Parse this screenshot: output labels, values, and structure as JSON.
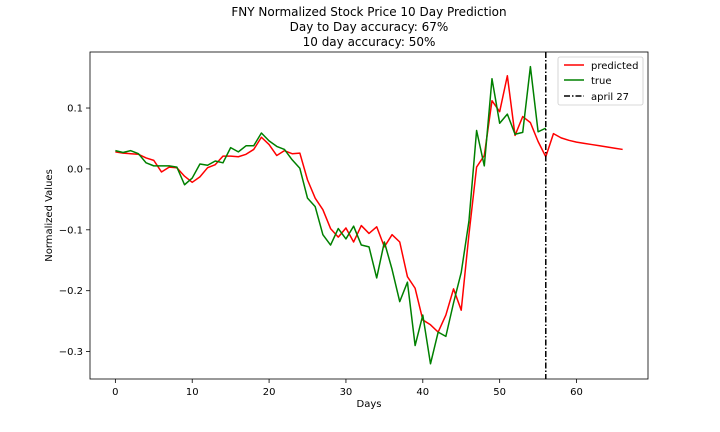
{
  "chart_data": {
    "type": "line",
    "title": [
      "FNY Normalized Stock Price 10 Day Prediction",
      "Day to Day accuracy: 67%",
      "10 day accuracy: 50%"
    ],
    "xlabel": "Days",
    "ylabel": "Normalized Values",
    "xlim": [
      -3.3,
      69.3
    ],
    "ylim": [
      -0.345,
      0.192
    ],
    "xticks": [
      0,
      10,
      20,
      30,
      40,
      50,
      60
    ],
    "yticks": [
      -0.3,
      -0.2,
      -0.1,
      0.0,
      0.1
    ],
    "ytick_labels": [
      "−0.3",
      "−0.2",
      "−0.1",
      "0.0",
      "0.1"
    ],
    "grid": false,
    "legend_position": "top-right",
    "series": [
      {
        "name": "predicted",
        "color": "#ff0000",
        "x": [
          0,
          1,
          2,
          3,
          4,
          5,
          6,
          7,
          8,
          9,
          10,
          11,
          12,
          13,
          14,
          15,
          16,
          17,
          18,
          19,
          20,
          21,
          22,
          23,
          24,
          25,
          26,
          27,
          28,
          29,
          30,
          31,
          32,
          33,
          34,
          35,
          36,
          37,
          38,
          39,
          40,
          41,
          42,
          43,
          44,
          45,
          46,
          47,
          48,
          49,
          50,
          51,
          52,
          53,
          54,
          55,
          56,
          57,
          58,
          59,
          60,
          61,
          62,
          63,
          64,
          65,
          66
        ],
        "y": [
          0.028,
          0.026,
          0.025,
          0.024,
          0.018,
          0.014,
          -0.005,
          0.003,
          0.002,
          -0.012,
          -0.022,
          -0.013,
          0.002,
          0.007,
          0.021,
          0.021,
          0.02,
          0.024,
          0.032,
          0.052,
          0.04,
          0.022,
          0.03,
          0.025,
          0.026,
          -0.018,
          -0.048,
          -0.067,
          -0.098,
          -0.112,
          -0.097,
          -0.12,
          -0.093,
          -0.106,
          -0.095,
          -0.128,
          -0.108,
          -0.12,
          -0.177,
          -0.196,
          -0.248,
          -0.256,
          -0.268,
          -0.24,
          -0.197,
          -0.232,
          -0.108,
          0.003,
          0.022,
          0.112,
          0.094,
          0.153,
          0.055,
          0.086,
          0.076,
          0.045,
          0.02,
          0.058,
          0.051,
          0.047,
          0.044,
          0.042,
          0.04,
          0.038,
          0.036,
          0.034,
          0.032
        ]
      },
      {
        "name": "true",
        "color": "#008000",
        "x": [
          0,
          1,
          2,
          3,
          4,
          5,
          6,
          7,
          8,
          9,
          10,
          11,
          12,
          13,
          14,
          15,
          16,
          17,
          18,
          19,
          20,
          21,
          22,
          23,
          24,
          25,
          26,
          27,
          28,
          29,
          30,
          31,
          32,
          33,
          34,
          35,
          36,
          37,
          38,
          39,
          40,
          41,
          42,
          43,
          44,
          45,
          46,
          47,
          48,
          49,
          50,
          51,
          52,
          53,
          54,
          55,
          56
        ],
        "y": [
          0.03,
          0.027,
          0.03,
          0.025,
          0.01,
          0.005,
          0.005,
          0.005,
          0.003,
          -0.026,
          -0.015,
          0.008,
          0.006,
          0.013,
          0.01,
          0.035,
          0.028,
          0.038,
          0.038,
          0.059,
          0.046,
          0.037,
          0.032,
          0.015,
          0.001,
          -0.048,
          -0.062,
          -0.108,
          -0.125,
          -0.098,
          -0.115,
          -0.094,
          -0.125,
          -0.128,
          -0.179,
          -0.12,
          -0.165,
          -0.218,
          -0.186,
          -0.29,
          -0.24,
          -0.32,
          -0.268,
          -0.275,
          -0.22,
          -0.17,
          -0.086,
          0.063,
          0.005,
          0.148,
          0.075,
          0.09,
          0.057,
          0.06,
          0.168,
          0.061,
          0.067
        ]
      }
    ],
    "vline": {
      "name": "april 27",
      "x": 56,
      "color": "#000000",
      "style": "dashdot"
    }
  }
}
